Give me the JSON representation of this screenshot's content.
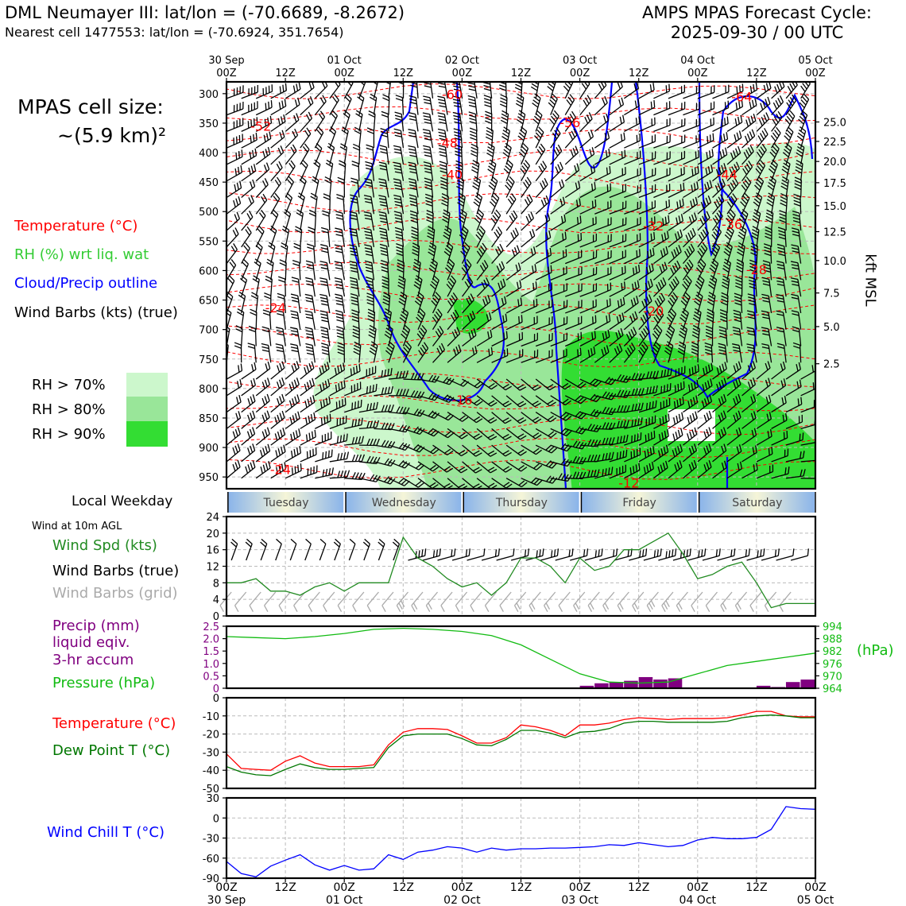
{
  "header": {
    "title_left": "DML Neumayer III: lat/lon = (-70.6689, -8.2672)",
    "subtitle_left": "Nearest cell 1477553: lat/lon = (-70.6924, 351.7654)",
    "title_right": "AMPS MPAS Forecast Cycle:",
    "title_right_date": "2025-09-30 / 00 UTC",
    "cell_size_line1": "MPAS cell size:",
    "cell_size_line2": "~(5.9 km)²"
  },
  "legend": {
    "temperature": "Temperature (°C)",
    "rh": "RH (%) wrt liq. wat",
    "cloud": "Cloud/Precip outline",
    "wind": "Wind Barbs (kts) (true)",
    "rh70": "RH > 70%",
    "rh80": "RH > 80%",
    "rh90": "RH > 90%",
    "local_weekday": "Local Weekday",
    "wind_10m": "Wind at 10m AGL",
    "wind_spd": "Wind Spd (kts)",
    "wind_barbs_true": "Wind Barbs (true)",
    "wind_barbs_grid": "Wind Barbs (grid)",
    "precip1": "Precip (mm)",
    "precip2": "liquid eqiv.",
    "precip3": "3-hr accum",
    "pressure": "Pressure (hPa)",
    "temp2": "Temperature (°C)",
    "dewpoint": "Dew Point T (°C)",
    "windchill": "Wind Chill T (°C)",
    "kft_msl": "kft MSL",
    "hpa_unit": "(hPa)"
  },
  "colors": {
    "temperature": "#ff0000",
    "rh_text": "#33cc33",
    "rh70": "#ccf7cc",
    "rh80": "#99e699",
    "rh90": "#33dd33",
    "cloud": "#0000ff",
    "precip": "#800080",
    "pressure": "#11bb11",
    "dewpoint": "#007700",
    "windchill": "#0000ff",
    "grid_barb": "#aaaaaa",
    "wind_speed": "#228b22"
  },
  "chart_data": [
    {
      "type": "heatmap",
      "title": "Vertical cross-section (time-height)",
      "x_time_hours": [
        0,
        120
      ],
      "y_pressure_ticks": [
        300,
        350,
        400,
        450,
        500,
        550,
        600,
        650,
        700,
        750,
        800,
        850,
        900,
        950
      ],
      "y_pressure_labels": [
        "300",
        "350",
        "400",
        "450",
        "500",
        "550",
        "600",
        "650",
        "700",
        "750",
        "800",
        "850",
        "900",
        "950"
      ],
      "ylim": [
        280,
        970
      ],
      "kft_ticks": [
        25.0,
        22.5,
        20.0,
        17.5,
        15.0,
        12.5,
        10.0,
        7.5,
        5.0,
        2.5
      ],
      "kft_labels": [
        "25.0",
        "22.5",
        "20.0",
        "17.5",
        "15.0",
        "12.5",
        "10.0",
        "7.5",
        "5.0",
        "2.5"
      ],
      "kft_pressure": [
        348,
        381,
        415,
        451,
        490,
        534,
        583,
        638,
        695,
        758
      ],
      "temperature_contour_labels": [
        {
          "text": "-60",
          "h": 46,
          "p": 301
        },
        {
          "text": "-64",
          "h": 105,
          "p": 305
        },
        {
          "text": "-52",
          "h": 7,
          "p": 355
        },
        {
          "text": "-56",
          "h": 70,
          "p": 349
        },
        {
          "text": "-48",
          "h": 45,
          "p": 383
        },
        {
          "text": "-40",
          "h": 46,
          "p": 437
        },
        {
          "text": "-44",
          "h": 102,
          "p": 437
        },
        {
          "text": "-32",
          "h": 87,
          "p": 524
        },
        {
          "text": "-36",
          "h": 103,
          "p": 521
        },
        {
          "text": "-28",
          "h": 108,
          "p": 598
        },
        {
          "text": "-24",
          "h": 10,
          "p": 663
        },
        {
          "text": "-20",
          "h": 87,
          "p": 668
        },
        {
          "text": "-16",
          "h": 48,
          "p": 819
        },
        {
          "text": "-24",
          "h": 11,
          "p": 937
        },
        {
          "text": "-12",
          "h": 82,
          "p": 960
        }
      ]
    },
    {
      "type": "line",
      "title": "Wind Spd (kts)",
      "x_hours": [
        0,
        3,
        6,
        9,
        12,
        15,
        18,
        21,
        24,
        27,
        30,
        33,
        36,
        39,
        42,
        45,
        48,
        51,
        54,
        57,
        60,
        63,
        66,
        69,
        72,
        75,
        78,
        81,
        84,
        87,
        90,
        93,
        96,
        99,
        102,
        105,
        108,
        111,
        114,
        117,
        120
      ],
      "series": [
        {
          "name": "Wind Spd (kts)",
          "values": [
            8,
            8,
            9,
            6,
            6,
            5,
            7,
            8,
            6,
            8,
            8,
            8,
            19,
            14,
            12,
            9,
            7,
            8,
            5,
            8,
            14,
            14,
            12,
            8,
            14,
            11,
            12,
            16,
            16,
            18,
            20,
            15,
            9,
            10,
            12,
            13,
            8,
            2,
            3,
            3,
            3
          ]
        }
      ],
      "ylim": [
        0,
        24
      ],
      "yticks": [
        0,
        4,
        8,
        12,
        16,
        20,
        24
      ],
      "ytick_labels": [
        "0",
        "4",
        "8",
        "12",
        "16",
        "20",
        "24"
      ]
    },
    {
      "type": "bar",
      "title": "Precip (mm) liquid eqiv. 3-hr accum",
      "x_hours": [
        72,
        75,
        78,
        81,
        84,
        87,
        90,
        108,
        111,
        114,
        117
      ],
      "values": [
        0.1,
        0.2,
        0.25,
        0.3,
        0.45,
        0.35,
        0.4,
        0.1,
        0.05,
        0.25,
        0.35
      ],
      "ylim": [
        0,
        2.5
      ],
      "yticks": [
        0,
        0.5,
        1.0,
        1.5,
        2.0,
        2.5
      ],
      "ytick_labels": [
        "0",
        "0.5",
        "1.0",
        "1.5",
        "2.0",
        "2.5"
      ]
    },
    {
      "type": "line",
      "title": "Pressure (hPa)",
      "x_hours": [
        0,
        6,
        12,
        18,
        24,
        30,
        36,
        42,
        48,
        54,
        60,
        66,
        72,
        78,
        84,
        90,
        96,
        102,
        108,
        114,
        120
      ],
      "series": [
        {
          "name": "Pressure (hPa)",
          "values": [
            989,
            988.5,
            988,
            989,
            990.5,
            992.5,
            993,
            992.5,
            991.5,
            989.5,
            985,
            978,
            971,
            967,
            966.5,
            967,
            971,
            975,
            977,
            979,
            981
          ]
        }
      ],
      "ylim": [
        964,
        994
      ],
      "yticks": [
        964,
        970,
        976,
        982,
        988,
        994
      ],
      "ytick_labels": [
        "964",
        "970",
        "976",
        "982",
        "988",
        "994"
      ]
    },
    {
      "type": "line",
      "title": "Temperature and Dew Point (°C)",
      "x_hours": [
        0,
        3,
        6,
        9,
        12,
        15,
        18,
        21,
        24,
        27,
        30,
        33,
        36,
        39,
        42,
        45,
        48,
        51,
        54,
        57,
        60,
        63,
        66,
        69,
        72,
        75,
        78,
        81,
        84,
        87,
        90,
        93,
        96,
        99,
        102,
        105,
        108,
        111,
        114,
        117,
        120
      ],
      "series": [
        {
          "name": "Temperature (°C)",
          "values": [
            -31,
            -39,
            -39.5,
            -40,
            -35,
            -32,
            -36,
            -38,
            -38,
            -38,
            -37,
            -26,
            -19,
            -17,
            -17,
            -17.5,
            -21,
            -25,
            -25,
            -22,
            -15,
            -16,
            -18,
            -21,
            -15,
            -15,
            -14,
            -12,
            -11,
            -11.5,
            -12,
            -11.5,
            -11.5,
            -11.5,
            -11,
            -9.5,
            -7.5,
            -7.5,
            -10,
            -10.5,
            -10.5
          ],
          "color": "#ff0000"
        },
        {
          "name": "Dew Point T (°C)",
          "values": [
            -38,
            -41,
            -42.5,
            -43,
            -39.5,
            -36.5,
            -38.5,
            -39.5,
            -39.5,
            -39,
            -38.5,
            -27.5,
            -21,
            -20,
            -20,
            -20,
            -22.5,
            -26,
            -26.5,
            -23,
            -18,
            -18,
            -19.5,
            -22,
            -19,
            -18.5,
            -17,
            -14,
            -13,
            -13,
            -13.5,
            -13.5,
            -13.5,
            -13.5,
            -13,
            -11,
            -10,
            -9.5,
            -10,
            -11,
            -11
          ],
          "color": "#007700"
        }
      ],
      "ylim": [
        -50,
        0
      ],
      "yticks": [
        0,
        -10,
        -20,
        -30,
        -40,
        -50
      ],
      "ytick_labels": [
        "0",
        "-10",
        "-20",
        "-30",
        "-40",
        "-50"
      ]
    },
    {
      "type": "line",
      "title": "Wind Chill T (°C)",
      "x_hours": [
        0,
        3,
        6,
        9,
        12,
        15,
        18,
        21,
        24,
        27,
        30,
        33,
        36,
        39,
        42,
        45,
        48,
        51,
        54,
        57,
        60,
        63,
        66,
        69,
        72,
        75,
        78,
        81,
        84,
        87,
        90,
        93,
        96,
        99,
        102,
        105,
        108,
        111,
        114,
        117,
        120
      ],
      "series": [
        {
          "name": "Wind Chill T (°C)",
          "values": [
            -65,
            -83,
            -88,
            -72,
            -63,
            -55,
            -70,
            -78,
            -71,
            -78,
            -76,
            -55,
            -62,
            -51,
            -48,
            -43,
            -45,
            -51,
            -45,
            -48,
            -46,
            -46,
            -45,
            -45,
            -44,
            -43,
            -40,
            -41,
            -37,
            -40,
            -43,
            -41,
            -33,
            -29,
            -31,
            -31,
            -29,
            -17,
            17,
            14,
            13
          ]
        }
      ],
      "ylim": [
        -90,
        30
      ],
      "yticks": [
        30,
        0,
        -30,
        -60,
        -90
      ],
      "ytick_labels": [
        "30",
        "0",
        "-30",
        "-60",
        "-90"
      ]
    }
  ],
  "time_axis": {
    "ticks_top": [
      {
        "h": 0,
        "line1": "30 Sep",
        "line2": "00Z"
      },
      {
        "h": 12,
        "line1": "",
        "line2": "12Z"
      },
      {
        "h": 24,
        "line1": "01 Oct",
        "line2": "00Z"
      },
      {
        "h": 36,
        "line1": "",
        "line2": "12Z"
      },
      {
        "h": 48,
        "line1": "02 Oct",
        "line2": "00Z"
      },
      {
        "h": 60,
        "line1": "",
        "line2": "12Z"
      },
      {
        "h": 72,
        "line1": "03 Oct",
        "line2": "00Z"
      },
      {
        "h": 84,
        "line1": "",
        "line2": "12Z"
      },
      {
        "h": 96,
        "line1": "04 Oct",
        "line2": "00Z"
      },
      {
        "h": 108,
        "line1": "",
        "line2": "12Z"
      },
      {
        "h": 120,
        "line1": "05 Oct",
        "line2": "00Z"
      }
    ],
    "weekdays": [
      "Tuesday",
      "Wednesday",
      "Thursday",
      "Friday",
      "Saturday"
    ]
  }
}
